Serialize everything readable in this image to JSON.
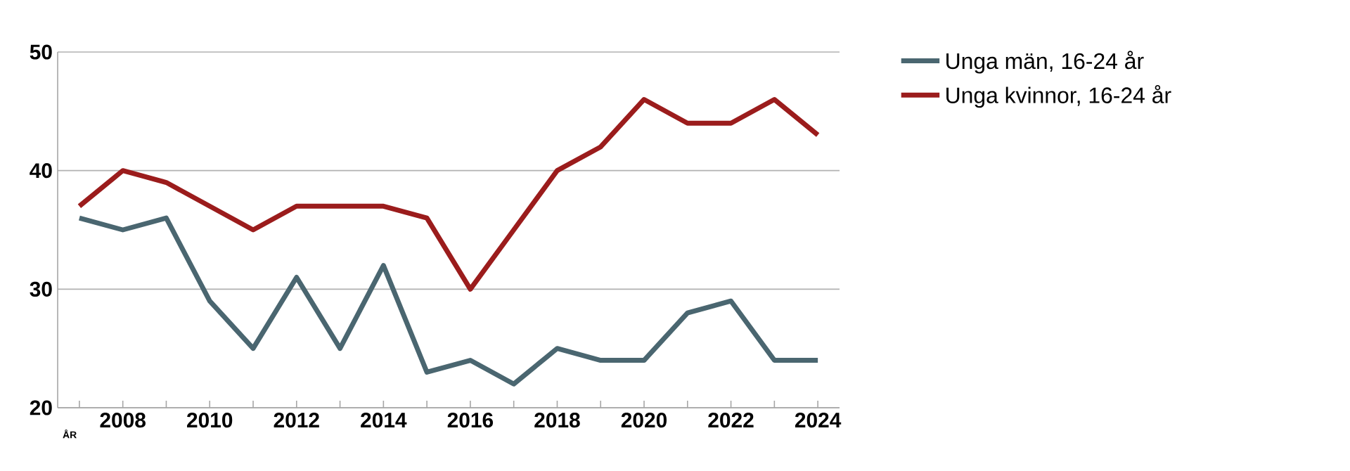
{
  "chart_data": {
    "type": "line",
    "xlabel": "ÅR",
    "x": [
      2007,
      2008,
      2009,
      2010,
      2011,
      2012,
      2013,
      2014,
      2015,
      2016,
      2017,
      2018,
      2019,
      2020,
      2021,
      2022,
      2023,
      2024
    ],
    "xlim": [
      2006.5,
      2024.5
    ],
    "xticks": [
      {
        "value": 2007,
        "label": null
      },
      2008,
      {
        "value": 2009,
        "label": null
      },
      2010,
      {
        "value": 2011,
        "label": null
      },
      2012,
      {
        "value": 2013,
        "label": null
      },
      2014,
      {
        "value": 2015,
        "label": null
      },
      2016,
      {
        "value": 2017,
        "label": null
      },
      2018,
      {
        "value": 2019,
        "label": null
      },
      2020,
      {
        "value": 2021,
        "label": null
      },
      2022,
      {
        "value": 2023,
        "label": null
      },
      2024
    ],
    "ylim": [
      20,
      50
    ],
    "yticks": [
      20,
      30,
      40,
      50
    ],
    "series": [
      {
        "name": "Unga män, 16-24 år",
        "color": "#4a6670",
        "values": [
          36,
          35,
          36,
          29,
          25,
          31,
          25,
          32,
          23,
          24,
          22,
          25,
          24,
          24,
          28,
          29,
          24,
          24
        ]
      },
      {
        "name": "Unga kvinnor, 16-24 år",
        "color": "#9b1c1c",
        "values": [
          37,
          40,
          39,
          37,
          35,
          37,
          37,
          37,
          36,
          30,
          35,
          40,
          42,
          46,
          44,
          44,
          46,
          43
        ]
      }
    ],
    "grid": "y",
    "legend": "top right",
    "line_style": "solid"
  }
}
